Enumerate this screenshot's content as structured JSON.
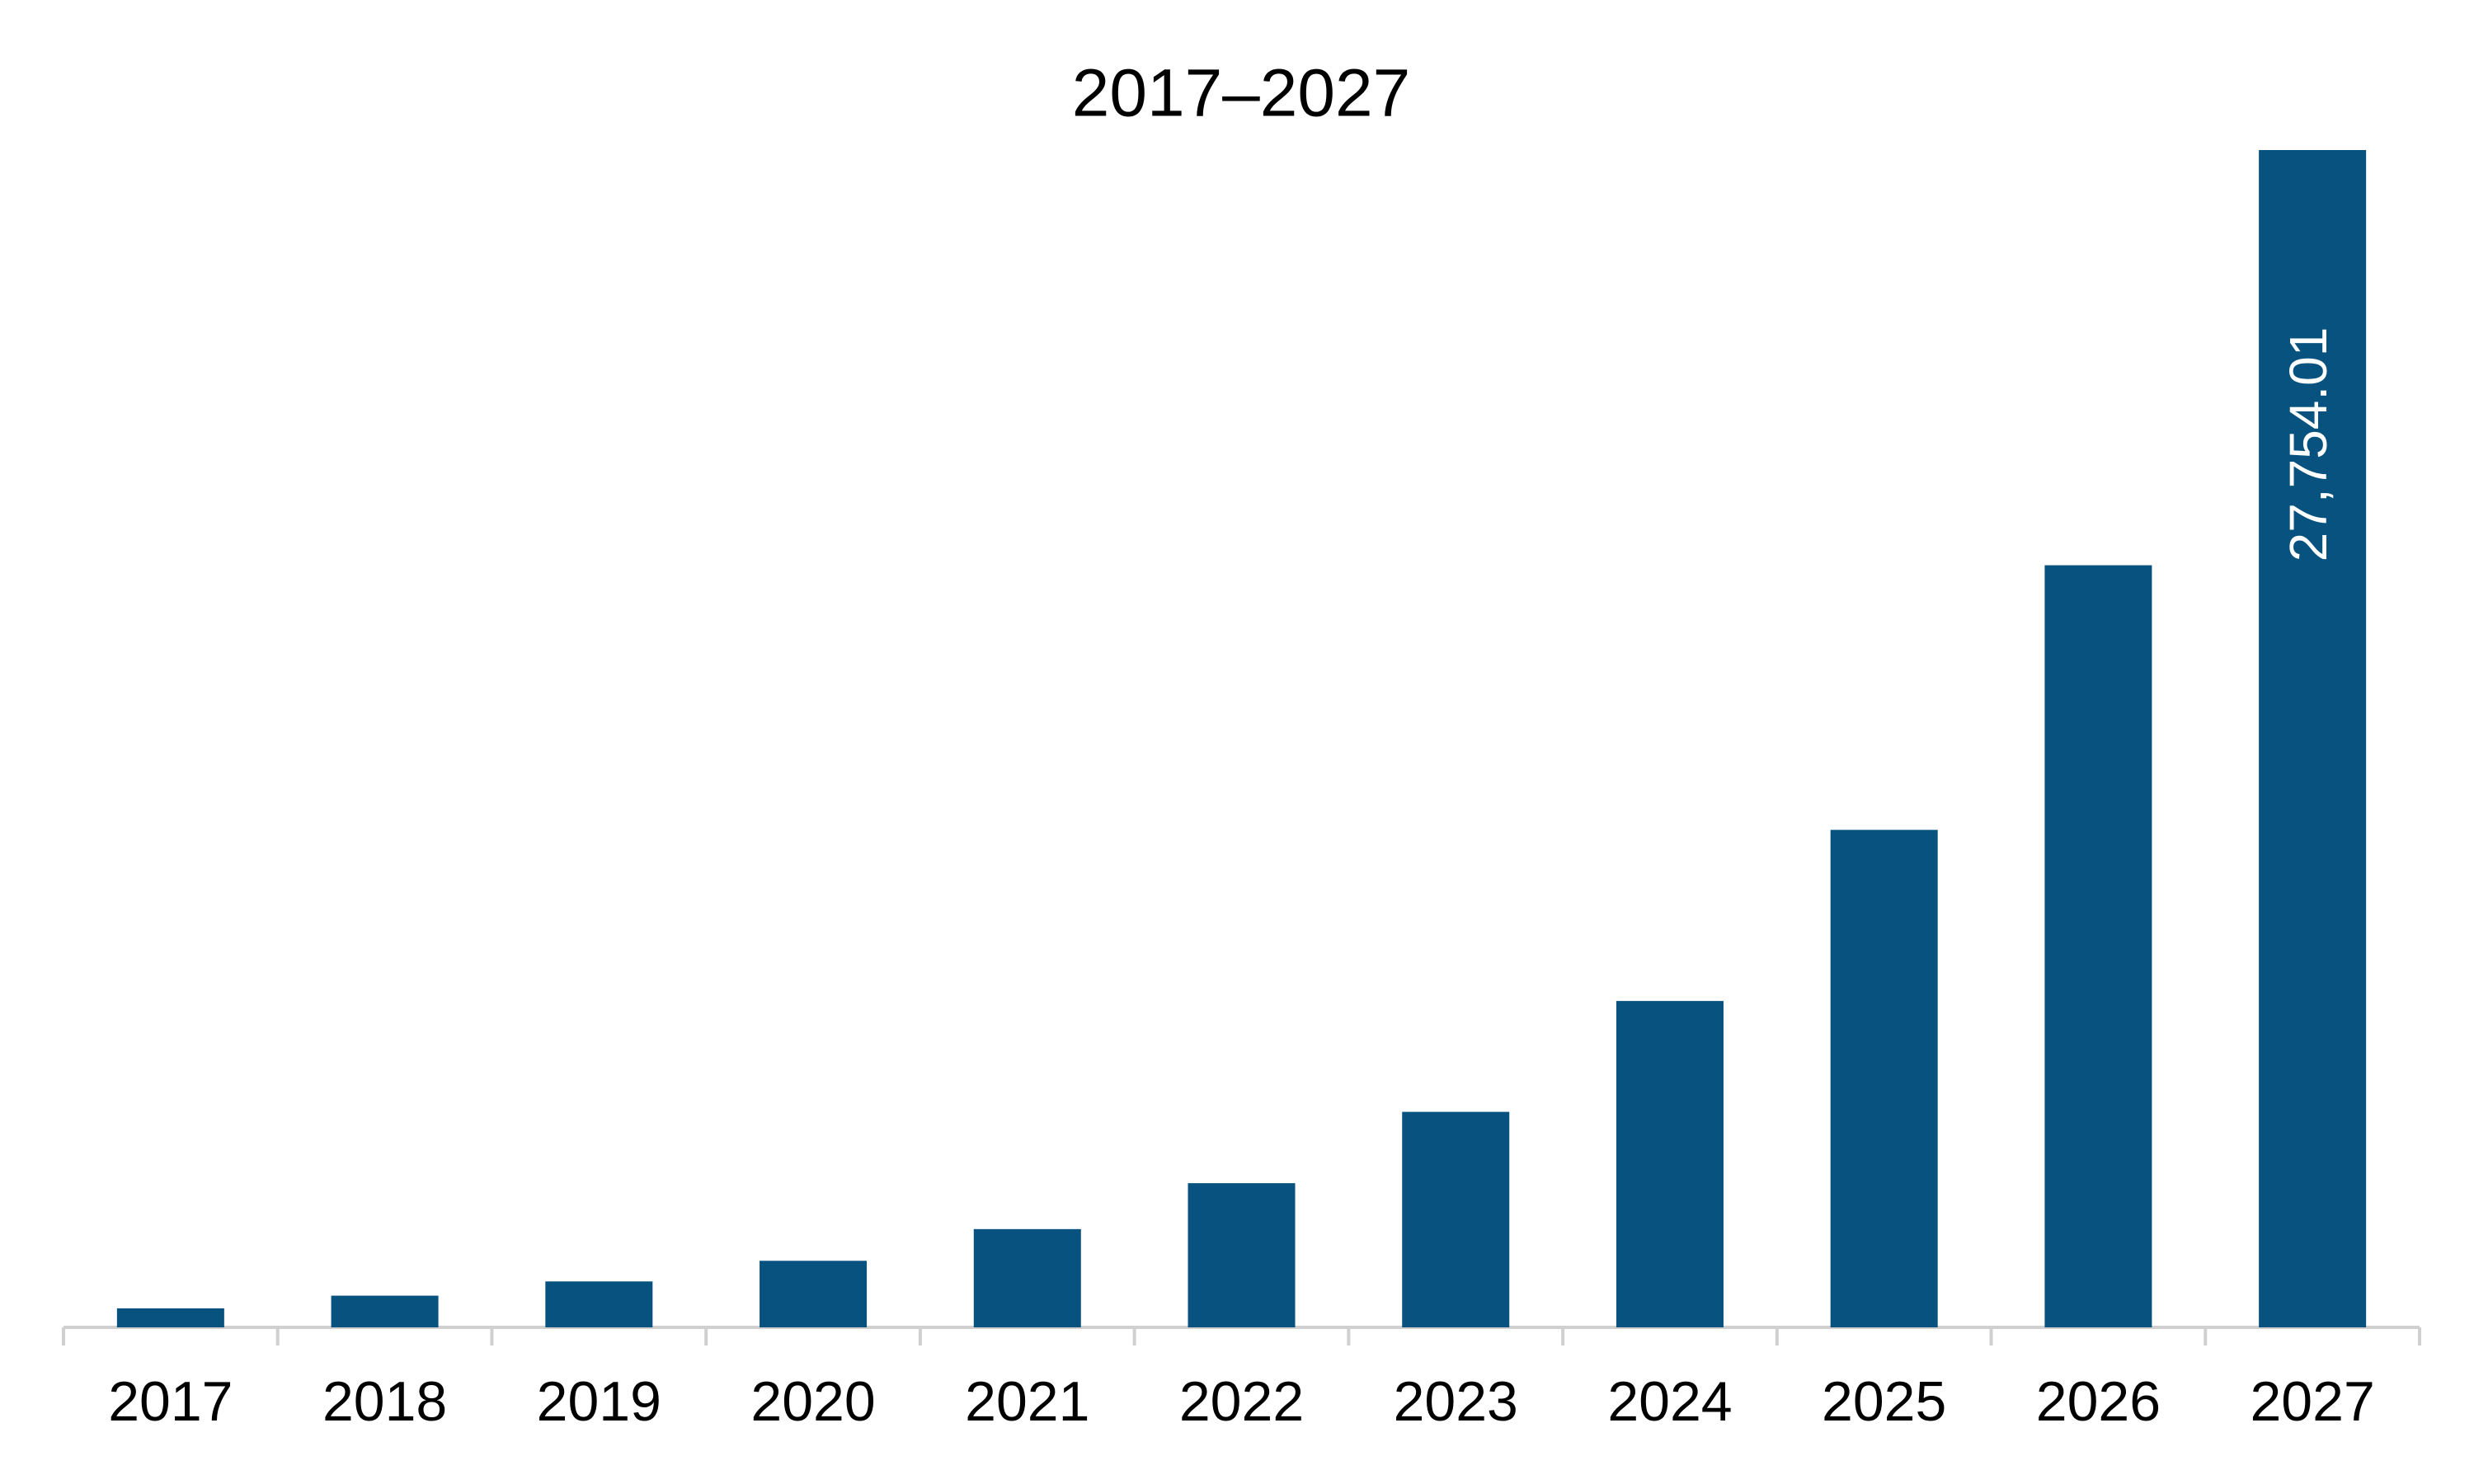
{
  "chart_data": {
    "type": "bar",
    "title": "2017–2027",
    "categories": [
      "2017",
      "2018",
      "2019",
      "2020",
      "2021",
      "2022",
      "2023",
      "2024",
      "2025",
      "2026",
      "2027"
    ],
    "values": [
      448,
      747,
      1083,
      1569,
      2316,
      3399,
      5080,
      7694,
      11728,
      17966,
      27754.01
    ],
    "value_labels": [
      null,
      null,
      null,
      null,
      null,
      null,
      null,
      null,
      null,
      null,
      "27,754.01"
    ],
    "color": "#07527f"
  }
}
